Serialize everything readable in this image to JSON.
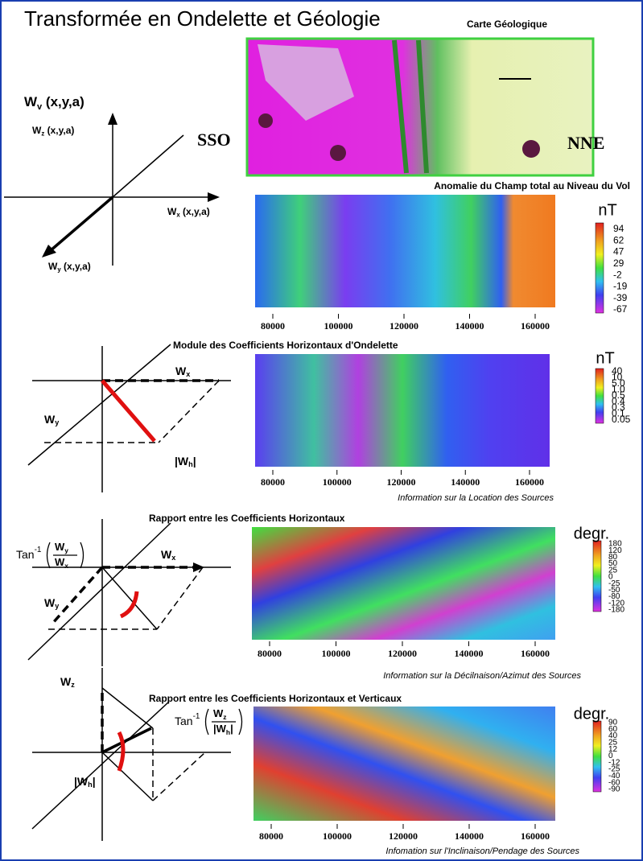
{
  "header": {
    "title": "Transformée en Ondelette et Géologie",
    "map_label": "Carte Géologique",
    "left_label": "SSO",
    "right_label": "NNE"
  },
  "diagrams": [
    {
      "labels": [
        {
          "main": "W",
          "sub": "v",
          "rest": " (x,y,a)"
        },
        {
          "main": "W",
          "sub": "z",
          "rest": " (x,y,a)"
        },
        {
          "main": "W",
          "sub": "x",
          "rest": " (x,y,a)"
        },
        {
          "main": "W",
          "sub": "y",
          "rest": " (x,y,a)"
        }
      ]
    },
    {
      "labels": [
        {
          "main": "W",
          "sub": "x"
        },
        {
          "main": "W",
          "sub": "y"
        },
        {
          "main": "|W",
          "sub": "h",
          "rest": "|"
        }
      ]
    },
    {
      "labels": [
        {
          "main": "W",
          "sub": "x"
        },
        {
          "main": "W",
          "sub": "y"
        }
      ],
      "formula": {
        "prefix": "Tan",
        "sup": "-1",
        "num": {
          "main": "W",
          "sub": "y"
        },
        "den": {
          "main": "W",
          "sub": "x"
        }
      }
    },
    {
      "labels": [
        {
          "main": "W",
          "sub": "z"
        },
        {
          "main": "|W",
          "sub": "h",
          "rest": "|"
        }
      ],
      "formula": {
        "prefix": "Tan",
        "sup": "-1",
        "num": {
          "main": "W",
          "sub": "z"
        },
        "den": {
          "main": "|W",
          "sub": "h",
          "rest": "|"
        }
      }
    }
  ],
  "panels": [
    {
      "title": "Anomalie du Champ total au Niveau du Vol",
      "xticks": [
        80000,
        100000,
        120000,
        140000,
        160000
      ],
      "unit": "nT",
      "colorbar": [
        "94",
        "62",
        "47",
        "29",
        "-2",
        "-19",
        "-39",
        "-67"
      ]
    },
    {
      "title": "Module des Coefficients Horizontaux d'Ondelette",
      "xticks": [
        80000,
        100000,
        120000,
        140000,
        160000
      ],
      "unit": "nT",
      "colorbar": [
        "40",
        "10",
        "5.0",
        "1.0",
        "0.5",
        "0.4",
        "0.3",
        "0.1",
        "0.05"
      ],
      "caption": "Information sur la Location des Sources"
    },
    {
      "title": "Rapport entre les Coefficients Horizontaux",
      "xticks": [
        80000,
        100000,
        120000,
        140000,
        160000
      ],
      "unit": "degr.",
      "colorbar": [
        "180",
        "120",
        "80",
        "50",
        "25",
        "0",
        "-25",
        "-50",
        "-80",
        "-120",
        "-180"
      ],
      "caption": "Information sur la Décilnaison/Azimut des Sources"
    },
    {
      "title": "Rapport entre les Coefficients Horizontaux et Verticaux",
      "xticks": [
        80000,
        100000,
        120000,
        140000,
        160000
      ],
      "unit": "degr.",
      "colorbar": [
        "90",
        "60",
        "40",
        "25",
        "12",
        "0",
        "-12",
        "-25",
        "-40",
        "-60",
        "-90"
      ],
      "caption": "Infomation sur l'Inclinaison/Pendage des Sources"
    }
  ]
}
